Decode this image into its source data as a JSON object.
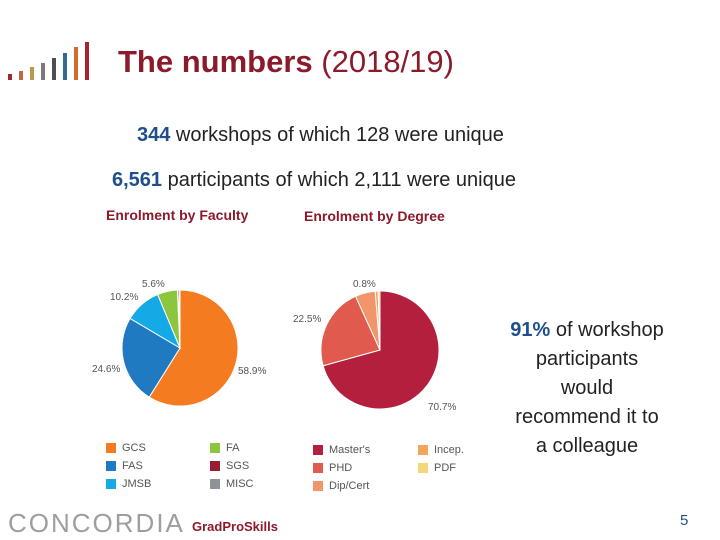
{
  "header": {
    "title_bold": "The numbers",
    "title_rest": " (2018/19)",
    "logo_bar_colors": [
      "#a3262e",
      "#c06a3e",
      "#b89a4a",
      "#7a7a7a",
      "#4f4f4f",
      "#2f6d8c",
      "#d46a2a",
      "#a3262e"
    ]
  },
  "stats": [
    {
      "num": "344",
      "text": " workshops of which 128 were unique"
    },
    {
      "num": "6,561",
      "text": " participants of which 2,111 were unique"
    }
  ],
  "recommend": {
    "num": "91%",
    "lines": [
      " of workshop",
      "participants",
      "would",
      "recommend it to",
      "a colleague"
    ]
  },
  "chart_data": [
    {
      "type": "pie",
      "title": "Enrolment by Faculty",
      "legend_position": "bottom",
      "slices": [
        {
          "name": "GCS",
          "label": "58.9%",
          "value": 58.9,
          "color": "#f47b20"
        },
        {
          "name": "FAS",
          "label": "24.6%",
          "value": 24.6,
          "color": "#1f7ac2"
        },
        {
          "name": "JMSB",
          "label": "10.2%",
          "value": 10.2,
          "color": "#15a9e6"
        },
        {
          "name": "FA",
          "label": "5.6%",
          "value": 5.6,
          "color": "#8cc63f"
        },
        {
          "name": "SGS",
          "label": "",
          "value": 0.4,
          "color": "#9b1b30"
        },
        {
          "name": "MISC",
          "label": "",
          "value": 0.3,
          "color": "#8c9496"
        }
      ]
    },
    {
      "type": "pie",
      "title": "Enrolment by Degree",
      "legend_position": "bottom",
      "slices": [
        {
          "name": "Master's",
          "label": "70.7%",
          "value": 70.7,
          "color": "#b41f3e"
        },
        {
          "name": "PHD",
          "label": "22.5%",
          "value": 22.5,
          "color": "#e05a4e"
        },
        {
          "name": "Dip/Cert",
          "label": "",
          "value": 5.5,
          "color": "#f2956a"
        },
        {
          "name": "Incep.",
          "label": "0.8%",
          "value": 0.8,
          "color": "#f5a45d"
        },
        {
          "name": "PDF",
          "label": "",
          "value": 0.5,
          "color": "#f7d57a"
        }
      ]
    }
  ],
  "footer": {
    "logo": "CONCORDIA",
    "sub": "GradProSkills",
    "page": "5"
  }
}
